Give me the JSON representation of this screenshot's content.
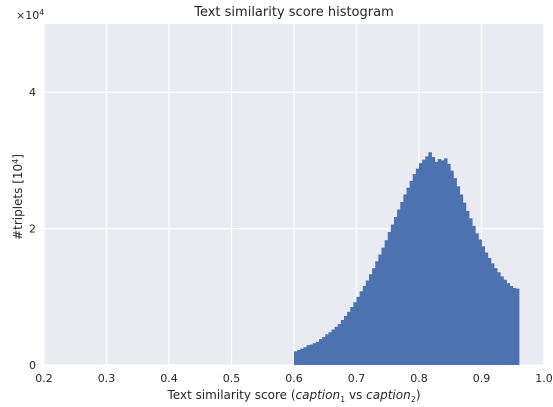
{
  "chart_data": {
    "type": "bar",
    "title": "Text similarity score histogram",
    "xlabel_parts": {
      "prefix": "Text similarity score (",
      "v1": "caption",
      "s1": "1",
      "mid": " vs ",
      "v2": "caption",
      "s2": "2",
      "suffix": ")"
    },
    "ylabel_parts": {
      "prefix": "#triplets [10",
      "sup": "4",
      "suffix": "]"
    },
    "y_multiplier": {
      "base": "×10",
      "exp": "4"
    },
    "xlim": [
      0.2,
      1.0
    ],
    "ylim": [
      0,
      5
    ],
    "x_ticks": [
      "0.2",
      "0.3",
      "0.4",
      "0.5",
      "0.6",
      "0.7",
      "0.8",
      "0.9",
      "1.0"
    ],
    "y_ticks": [
      "0",
      "2",
      "4"
    ],
    "grid": true,
    "bin_start": 0.6,
    "bin_width": 0.005,
    "values": [
      0.2,
      0.22,
      0.24,
      0.26,
      0.29,
      0.3,
      0.32,
      0.34,
      0.38,
      0.41,
      0.45,
      0.48,
      0.52,
      0.56,
      0.6,
      0.66,
      0.72,
      0.78,
      0.85,
      0.92,
      1.0,
      1.08,
      1.16,
      1.24,
      1.33,
      1.42,
      1.52,
      1.62,
      1.72,
      1.83,
      1.95,
      2.06,
      2.17,
      2.28,
      2.39,
      2.5,
      2.6,
      2.7,
      2.8,
      2.88,
      2.96,
      3.01,
      3.06,
      3.12,
      3.05,
      2.98,
      3.02,
      3.0,
      3.03,
      2.95,
      2.85,
      2.74,
      2.62,
      2.5,
      2.38,
      2.26,
      2.15,
      2.04,
      1.93,
      1.84,
      1.74,
      1.65,
      1.57,
      1.49,
      1.42,
      1.36,
      1.3,
      1.25,
      1.2,
      1.16,
      1.13,
      1.12
    ],
    "colors": {
      "background": "#eaeaf2",
      "grid": "#ffffff",
      "bar": "#4c72b0",
      "text": "#262626"
    }
  }
}
